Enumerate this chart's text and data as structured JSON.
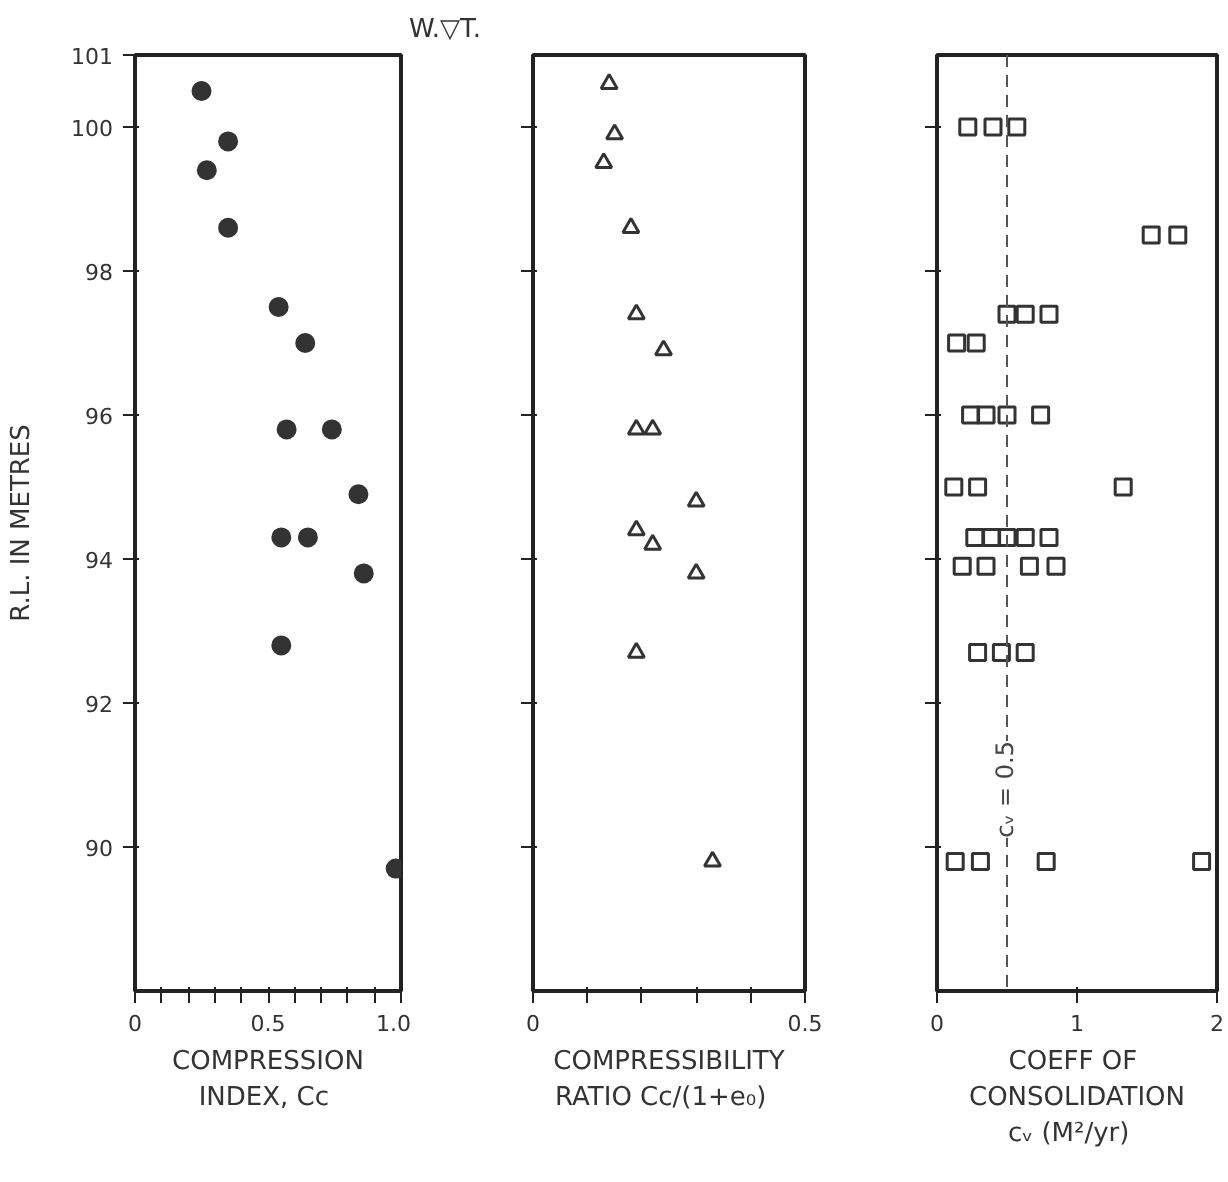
{
  "chart_data": [
    {
      "type": "scatter",
      "xlabel": "COMPRESSION\nINDEX,  Cc",
      "ylabel": "R.L. IN METRES",
      "marker": "circle",
      "grid": false,
      "xlim": [
        0,
        1
      ],
      "ylim": [
        88,
        101
      ],
      "xticks": [
        0,
        {
          "value": 0.1,
          "label": null
        },
        {
          "value": 0.2,
          "label": null
        },
        {
          "value": 0.3,
          "label": null
        },
        {
          "value": 0.4,
          "label": null
        },
        0.5,
        {
          "value": 0.6,
          "label": null
        },
        {
          "value": 0.7,
          "label": null
        },
        {
          "value": 0.8,
          "label": null
        },
        {
          "value": 0.9,
          "label": null
        },
        {
          "value": 1,
          "label": "1.0"
        }
      ],
      "yticks": [
        90,
        92,
        94,
        96,
        98,
        100,
        101
      ],
      "series": [
        {
          "color": "#333333",
          "x": [
            0.25,
            0.35,
            0.27,
            0.35,
            0.54,
            0.64,
            0.57,
            0.74,
            0.84,
            0.55,
            0.65,
            0.86,
            0.55,
            0.98
          ],
          "values": [
            100.5,
            99.8,
            99.4,
            98.6,
            97.5,
            97.0,
            95.8,
            95.8,
            94.9,
            94.3,
            94.3,
            93.8,
            92.8,
            89.7
          ]
        }
      ]
    },
    {
      "type": "scatter",
      "xlabel": "COMPRESSIBILITY\nRATIO   Cc/(1+e₀)",
      "marker": "triangle",
      "grid": false,
      "tick_labels": "x",
      "annotations": [
        "W.▽T."
      ],
      "xlim": [
        0,
        0.5
      ],
      "ylim": [
        88,
        101
      ],
      "xticks": [
        0,
        {
          "value": 0.1,
          "label": null
        },
        {
          "value": 0.2,
          "label": null
        },
        {
          "value": 0.3,
          "label": null
        },
        {
          "value": 0.4,
          "label": null
        },
        0.5
      ],
      "yticks": [
        90,
        92,
        94,
        96,
        98,
        100
      ],
      "series": [
        {
          "color": "#333333",
          "x": [
            0.14,
            0.15,
            0.13,
            0.18,
            0.19,
            0.24,
            0.19,
            0.22,
            0.3,
            0.19,
            0.22,
            0.3,
            0.19,
            0.33
          ],
          "values": [
            100.6,
            99.9,
            99.5,
            98.6,
            97.4,
            96.9,
            95.8,
            95.8,
            94.8,
            94.4,
            94.2,
            93.8,
            92.7,
            89.8
          ]
        }
      ]
    },
    {
      "type": "scatter",
      "xlabel": "COEFF  OF\nCONSOLIDATION\ncᵥ   (M²/yr)",
      "marker": "square",
      "grid": false,
      "tick_labels": "x",
      "xlim": [
        0,
        2
      ],
      "ylim": [
        88,
        101
      ],
      "xticks": [
        0,
        1,
        2
      ],
      "yticks": [
        90,
        92,
        94,
        96,
        98,
        100
      ],
      "ref_lines": [
        {
          "axis": "x",
          "value": 0.5,
          "label": "cᵥ = 0.5",
          "line_style": "dashed",
          "color": "#555555"
        }
      ],
      "series": [
        {
          "color": "#333333",
          "x": [
            0.22,
            0.4,
            0.57,
            1.53,
            1.72,
            0.5,
            0.63,
            0.8,
            0.14,
            0.28,
            0.24,
            0.35,
            0.5,
            0.74,
            0.12,
            0.29,
            1.33,
            0.27,
            0.39,
            0.5,
            0.63,
            0.8,
            0.18,
            0.35,
            0.66,
            0.85,
            0.29,
            0.46,
            0.63,
            0.13,
            0.31,
            0.78,
            1.89
          ],
          "values": [
            100.0,
            100.0,
            100.0,
            98.5,
            98.5,
            97.4,
            97.4,
            97.4,
            97.0,
            97.0,
            96.0,
            96.0,
            96.0,
            96.0,
            95.0,
            95.0,
            95.0,
            94.3,
            94.3,
            94.3,
            94.3,
            94.3,
            93.9,
            93.9,
            93.9,
            93.9,
            92.7,
            92.7,
            92.7,
            89.8,
            89.8,
            89.8,
            89.8
          ]
        }
      ]
    }
  ]
}
